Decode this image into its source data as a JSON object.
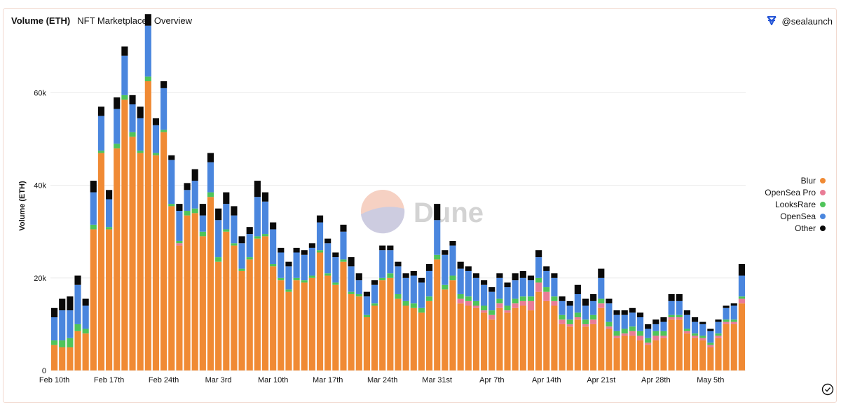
{
  "header": {
    "title": "Volume (ETH)",
    "subtitle": "NFT Marketplaces Overview"
  },
  "author": {
    "handle": "@sealaunch",
    "icon": "dune-logo-icon",
    "brand_color": "#2253d6"
  },
  "watermark": {
    "text": "Dune"
  },
  "colors": {
    "Blur": "#f08a34",
    "OpenSea Pro": "#e97c96",
    "LooksRare": "#4fc45a",
    "OpenSea": "#4a86de",
    "Other": "#0a0a0a"
  },
  "chart_data": {
    "type": "bar",
    "stacked": true,
    "title": "Volume (ETH)",
    "subtitle": "NFT Marketplaces Overview",
    "ylabel": "Volume (ETH)",
    "xlabel": "",
    "ylim": [
      0,
      74000
    ],
    "yticks": [
      0,
      20000,
      40000,
      60000
    ],
    "ytick_labels": [
      "0",
      "20k",
      "40k",
      "60k"
    ],
    "xtick_labels": [
      {
        "index": 0,
        "label": "Feb 10th"
      },
      {
        "index": 7,
        "label": "Feb 17th"
      },
      {
        "index": 14,
        "label": "Feb 24th"
      },
      {
        "index": 21,
        "label": "Mar 3rd"
      },
      {
        "index": 28,
        "label": "Mar 10th"
      },
      {
        "index": 35,
        "label": "Mar 17th"
      },
      {
        "index": 42,
        "label": "Mar 24th"
      },
      {
        "index": 49,
        "label": "Mar 31st"
      },
      {
        "index": 56,
        "label": "Apr 7th"
      },
      {
        "index": 63,
        "label": "Apr 14th"
      },
      {
        "index": 70,
        "label": "Apr 21st"
      },
      {
        "index": 77,
        "label": "Apr 28th"
      },
      {
        "index": 84,
        "label": "May 5th"
      }
    ],
    "grid": true,
    "legend_position": "right",
    "series": [
      {
        "name": "Blur",
        "values": [
          5500,
          5000,
          5000,
          8500,
          8000,
          30500,
          47000,
          30500,
          48000,
          58500,
          50500,
          47000,
          62500,
          46500,
          51500,
          35500,
          27000,
          33500,
          34000,
          29000,
          37500,
          23500,
          30000,
          27000,
          21500,
          24000,
          28500,
          29000,
          22500,
          19500,
          17000,
          19500,
          19000,
          20000,
          25500,
          20500,
          18500,
          23500,
          16500,
          16000,
          11500,
          14000,
          19500,
          20000,
          15500,
          14000,
          13500,
          12500,
          15000,
          24000,
          17500,
          19500,
          14500,
          14000,
          13500,
          12500,
          11000,
          13500,
          12500,
          13500,
          14000,
          13000,
          17000,
          15000,
          14000,
          10000,
          9500,
          11000,
          9500,
          10000,
          13500,
          9000,
          7000,
          7500,
          7500,
          6500,
          5500,
          6500,
          7000,
          11000,
          11000,
          8000,
          7000,
          6500,
          5000,
          7000,
          10000,
          10000,
          14500
        ]
      },
      {
        "name": "OpenSea Pro",
        "values": [
          0,
          0,
          0,
          0,
          0,
          0,
          0,
          0,
          0,
          0,
          0,
          0,
          0,
          0,
          0,
          0,
          500,
          0,
          0,
          0,
          0,
          0,
          0,
          0,
          0,
          0,
          0,
          0,
          0,
          0,
          0,
          0,
          0,
          0,
          0,
          0,
          0,
          0,
          0,
          0,
          0,
          0,
          0,
          0,
          0,
          0,
          0,
          0,
          0,
          0,
          0,
          0,
          1000,
          1000,
          500,
          500,
          1000,
          1000,
          500,
          1000,
          1000,
          2000,
          2000,
          2000,
          1000,
          1000,
          500,
          500,
          500,
          1000,
          1000,
          500,
          500,
          500,
          1000,
          1000,
          500,
          1000,
          500,
          500,
          500,
          500,
          500,
          500,
          500,
          500,
          500,
          500,
          1000
        ]
      },
      {
        "name": "LooksRare",
        "values": [
          1000,
          1500,
          2000,
          1500,
          1000,
          1000,
          500,
          500,
          1000,
          1000,
          1000,
          500,
          1000,
          500,
          500,
          500,
          500,
          1000,
          1000,
          1000,
          1000,
          1000,
          500,
          500,
          500,
          500,
          500,
          500,
          500,
          500,
          500,
          500,
          500,
          500,
          500,
          500,
          500,
          500,
          500,
          500,
          500,
          500,
          500,
          1000,
          1000,
          1000,
          1000,
          1000,
          1000,
          1000,
          1000,
          1000,
          1000,
          1000,
          1000,
          1000,
          1000,
          1000,
          1000,
          1000,
          1000,
          1000,
          1000,
          1000,
          1000,
          1000,
          1000,
          1000,
          1000,
          1000,
          1000,
          1000,
          1000,
          1000,
          1000,
          1000,
          1000,
          1000,
          1000,
          500,
          500,
          500,
          500,
          500,
          500,
          500,
          500,
          500,
          500
        ]
      },
      {
        "name": "OpenSea",
        "values": [
          5000,
          6500,
          6000,
          8500,
          5000,
          7000,
          7500,
          6000,
          7500,
          8500,
          6000,
          7000,
          11000,
          6000,
          9000,
          9500,
          6500,
          4500,
          6000,
          3500,
          6500,
          8000,
          5500,
          6000,
          5500,
          5000,
          8500,
          7000,
          7500,
          5500,
          5000,
          5500,
          5500,
          6000,
          6000,
          6500,
          5500,
          6000,
          5500,
          3000,
          4000,
          4000,
          6000,
          5000,
          6000,
          5000,
          6000,
          5500,
          5500,
          7500,
          6500,
          6500,
          5500,
          5500,
          5000,
          4500,
          4000,
          4500,
          4000,
          4000,
          4000,
          3500,
          4500,
          3500,
          4000,
          3000,
          3000,
          4000,
          3000,
          3000,
          4500,
          4000,
          3500,
          3000,
          3000,
          3000,
          2000,
          1500,
          2000,
          3000,
          3000,
          3000,
          2500,
          2500,
          2500,
          2500,
          2500,
          3000,
          4500
        ]
      },
      {
        "name": "Other",
        "values": [
          2000,
          2500,
          3000,
          2000,
          1500,
          2500,
          2000,
          2000,
          2500,
          2000,
          2000,
          2500,
          2500,
          1500,
          1500,
          1000,
          1500,
          1500,
          2500,
          2500,
          2000,
          2500,
          2500,
          2000,
          1500,
          1500,
          3500,
          2000,
          1500,
          1000,
          1000,
          1000,
          1000,
          1000,
          1500,
          1000,
          1000,
          1500,
          2000,
          1500,
          1000,
          1000,
          1000,
          1000,
          1000,
          1000,
          1000,
          1000,
          1500,
          3500,
          1000,
          1000,
          1500,
          1000,
          1000,
          1000,
          1000,
          1000,
          1000,
          1500,
          1500,
          1000,
          1500,
          1000,
          1000,
          1000,
          1000,
          2000,
          1500,
          1500,
          2000,
          1000,
          1000,
          1000,
          1000,
          1000,
          1000,
          1000,
          1000,
          1500,
          1500,
          1000,
          1000,
          500,
          500,
          500,
          500,
          500,
          2500
        ]
      }
    ]
  }
}
